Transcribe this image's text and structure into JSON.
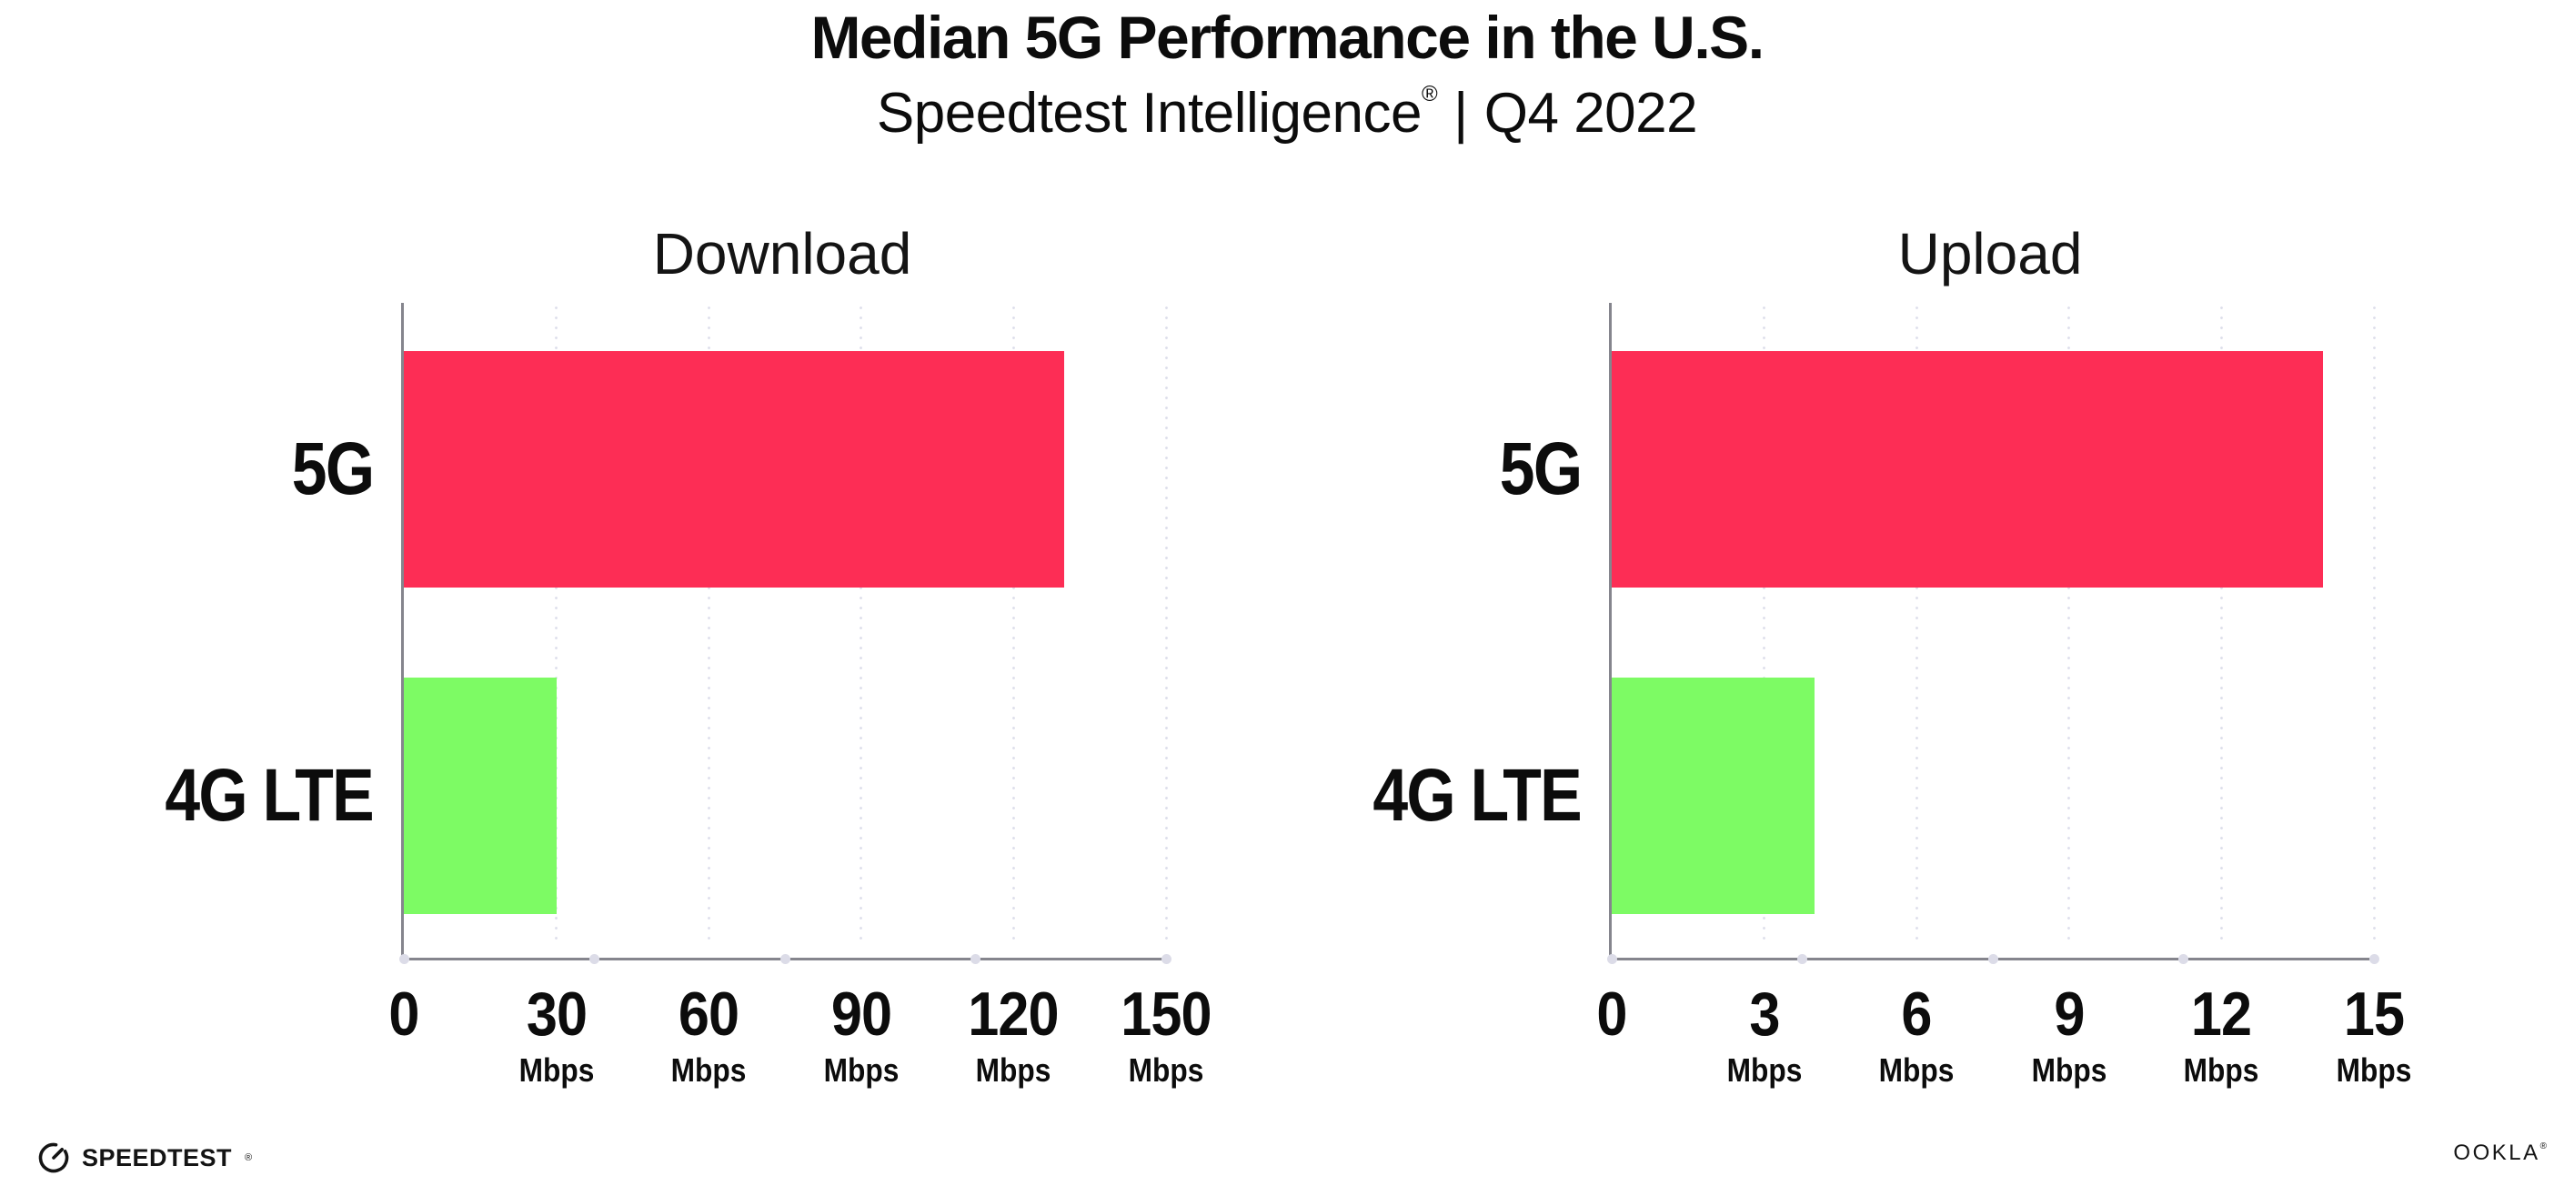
{
  "header": {
    "title": "Median 5G Performance in the U.S.",
    "subtitle_brand": "Speedtest Intelligence",
    "subtitle_reg_mark": "®",
    "subtitle_separator": "|",
    "subtitle_period": "Q4 2022"
  },
  "colors": {
    "bar_5g": "#fd2d55",
    "bar_4g_lte": "#7dfb64",
    "axis_line": "#85858d",
    "gridline_dot": "#dfe0ec",
    "axis_tick_dot": "#dcdce8",
    "text": "#0c0c0c",
    "background": "#ffffff"
  },
  "chart_data": [
    {
      "type": "bar",
      "orientation": "horizontal",
      "title": "Download",
      "categories": [
        "5G",
        "4G LTE"
      ],
      "values": [
        130,
        30
      ],
      "value_unit": "Mbps",
      "xlim": [
        0,
        150
      ],
      "xticks": [
        0,
        30,
        60,
        90,
        120,
        150
      ],
      "xtick_unit_label": "Mbps",
      "bar_colors": [
        "#fd2d55",
        "#7dfb64"
      ],
      "grid": "dotted-vertical",
      "legend": "none"
    },
    {
      "type": "bar",
      "orientation": "horizontal",
      "title": "Upload",
      "categories": [
        "5G",
        "4G LTE"
      ],
      "values": [
        14,
        4
      ],
      "value_unit": "Mbps",
      "xlim": [
        0,
        15
      ],
      "xticks": [
        0,
        3,
        6,
        9,
        12,
        15
      ],
      "xtick_unit_label": "Mbps",
      "bar_colors": [
        "#fd2d55",
        "#7dfb64"
      ],
      "grid": "dotted-vertical",
      "legend": "none"
    }
  ],
  "footer": {
    "speedtest_text": "SPEEDTEST",
    "speedtest_mark": "®",
    "ookla_text": "OOKLA",
    "ookla_mark": "®"
  }
}
